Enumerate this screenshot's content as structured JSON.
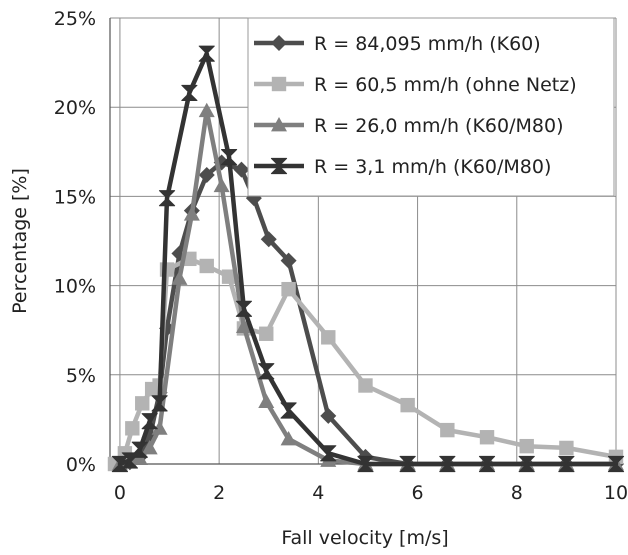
{
  "chart_data": {
    "type": "line",
    "title": "",
    "xlabel": "Fall velocity [m/s]",
    "ylabel": "Percentage [%]",
    "xlim": [
      -0.2,
      10
    ],
    "ylim": [
      0,
      25
    ],
    "x_ticks": [
      0,
      2,
      4,
      6,
      8,
      10
    ],
    "y_ticks": [
      0,
      5,
      10,
      15,
      20,
      25
    ],
    "y_tick_labels": [
      "0%",
      "5%",
      "10%",
      "15%",
      "20%",
      "25%"
    ],
    "grid": true,
    "legend_position": "top-right",
    "series": [
      {
        "name": "R = 84,095 mm/h (K60)",
        "color": "#4d4d4d",
        "marker": "diamond",
        "points": [
          [
            0,
            0
          ],
          [
            0.2,
            0.1
          ],
          [
            0.4,
            0.4
          ],
          [
            0.6,
            1.5
          ],
          [
            0.8,
            4.0
          ],
          [
            0.95,
            7.6
          ],
          [
            1.2,
            11.8
          ],
          [
            1.45,
            14.2
          ],
          [
            1.75,
            16.2
          ],
          [
            2.05,
            16.9
          ],
          [
            2.45,
            16.5
          ],
          [
            2.7,
            14.9
          ],
          [
            3.0,
            12.6
          ],
          [
            3.4,
            11.4
          ],
          [
            4.2,
            2.7
          ],
          [
            4.95,
            0.4
          ],
          [
            5.8,
            0
          ],
          [
            6.6,
            0
          ],
          [
            7.4,
            0
          ],
          [
            8.2,
            0
          ],
          [
            9.0,
            0
          ],
          [
            10,
            0
          ]
        ]
      },
      {
        "name": "R = 60,5 mm/h (ohne Netz)",
        "color": "#b3b3b3",
        "marker": "square",
        "points": [
          [
            -0.1,
            0
          ],
          [
            0.1,
            0.6
          ],
          [
            0.25,
            2.0
          ],
          [
            0.45,
            3.4
          ],
          [
            0.65,
            4.2
          ],
          [
            0.8,
            4.4
          ],
          [
            0.95,
            10.9
          ],
          [
            1.4,
            11.5
          ],
          [
            1.75,
            11.1
          ],
          [
            2.2,
            10.5
          ],
          [
            2.5,
            7.6
          ],
          [
            2.95,
            7.3
          ],
          [
            3.4,
            9.8
          ],
          [
            4.2,
            7.1
          ],
          [
            4.95,
            4.4
          ],
          [
            5.8,
            3.3
          ],
          [
            6.6,
            1.9
          ],
          [
            7.4,
            1.5
          ],
          [
            8.2,
            1.0
          ],
          [
            9.0,
            0.9
          ],
          [
            10,
            0.4
          ]
        ]
      },
      {
        "name": "R = 26,0 mm/h (K60/M80)",
        "color": "#7f7f7f",
        "marker": "triangle",
        "points": [
          [
            0,
            0
          ],
          [
            0.2,
            0.1
          ],
          [
            0.4,
            0.3
          ],
          [
            0.6,
            0.9
          ],
          [
            0.8,
            2.0
          ],
          [
            1.2,
            10.4
          ],
          [
            1.45,
            14.0
          ],
          [
            1.75,
            19.8
          ],
          [
            2.05,
            15.6
          ],
          [
            2.5,
            7.7
          ],
          [
            2.95,
            3.5
          ],
          [
            3.4,
            1.4
          ],
          [
            4.2,
            0.2
          ],
          [
            4.95,
            0
          ],
          [
            5.8,
            0
          ],
          [
            6.6,
            0
          ],
          [
            7.4,
            0
          ],
          [
            8.2,
            0
          ],
          [
            9.0,
            0
          ],
          [
            10,
            0
          ]
        ]
      },
      {
        "name": "R = 3,1 mm/h (K60/M80)",
        "color": "#333333",
        "marker": "hourglass",
        "points": [
          [
            0,
            0
          ],
          [
            0.2,
            0.2
          ],
          [
            0.4,
            0.8
          ],
          [
            0.6,
            2.4
          ],
          [
            0.8,
            3.4
          ],
          [
            0.95,
            14.9
          ],
          [
            1.4,
            20.8
          ],
          [
            1.75,
            23.0
          ],
          [
            2.2,
            17.2
          ],
          [
            2.5,
            8.7
          ],
          [
            2.95,
            5.2
          ],
          [
            3.4,
            3.0
          ],
          [
            4.2,
            0.6
          ],
          [
            4.95,
            0
          ],
          [
            5.8,
            0
          ],
          [
            6.6,
            0
          ],
          [
            7.4,
            0
          ],
          [
            8.2,
            0
          ],
          [
            9.0,
            0
          ],
          [
            10,
            0
          ]
        ]
      }
    ]
  }
}
